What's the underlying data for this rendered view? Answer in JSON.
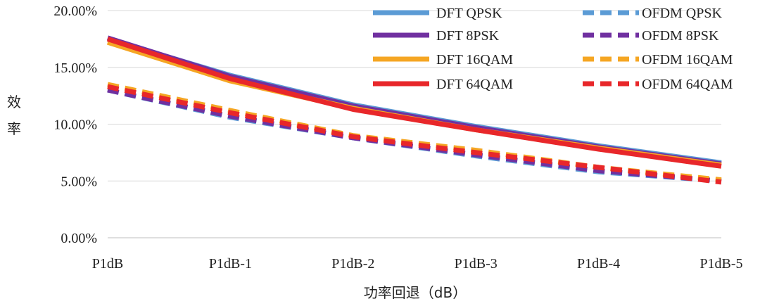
{
  "chart_data": {
    "type": "line",
    "title": "",
    "xlabel": "功率回退（dB）",
    "ylabel": "效率",
    "categories": [
      "P1dB",
      "P1dB-1",
      "P1dB-2",
      "P1dB-3",
      "P1dB-4",
      "P1dB-5"
    ],
    "ylim": [
      0,
      20
    ],
    "y_ticks": [
      0,
      5,
      10,
      15,
      20
    ],
    "y_tick_labels": [
      "0.00%",
      "5.00%",
      "10.00%",
      "15.00%",
      "20.00%"
    ],
    "grid": true,
    "legend_position": "top-right",
    "series": [
      {
        "name": "DFT QPSK",
        "color": "#5B9BD5",
        "style": "solid",
        "values": [
          17.5,
          14.3,
          11.7,
          9.8,
          8.1,
          6.6
        ]
      },
      {
        "name": "OFDM QPSK",
        "color": "#5B9BD5",
        "style": "dashed",
        "values": [
          13.0,
          10.6,
          8.8,
          7.2,
          5.8,
          5.0
        ]
      },
      {
        "name": "DFT 8PSK",
        "color": "#7030A0",
        "style": "solid",
        "values": [
          17.6,
          14.2,
          11.6,
          9.7,
          8.0,
          6.5
        ]
      },
      {
        "name": "OFDM 8PSK",
        "color": "#7030A0",
        "style": "dashed",
        "values": [
          13.0,
          10.7,
          8.8,
          7.3,
          5.9,
          5.0
        ]
      },
      {
        "name": "DFT 16QAM",
        "color": "#F5A623",
        "style": "solid",
        "values": [
          17.2,
          13.8,
          11.4,
          9.5,
          7.9,
          6.4
        ]
      },
      {
        "name": "OFDM 16QAM",
        "color": "#F5A623",
        "style": "dashed",
        "values": [
          13.5,
          11.2,
          9.0,
          7.7,
          6.2,
          5.1
        ]
      },
      {
        "name": "DFT 64QAM",
        "color": "#E8272A",
        "style": "solid",
        "values": [
          17.5,
          14.0,
          11.3,
          9.5,
          7.8,
          6.3
        ]
      },
      {
        "name": "OFDM 64QAM",
        "color": "#E8272A",
        "style": "dashed",
        "values": [
          13.3,
          11.0,
          8.9,
          7.5,
          6.2,
          4.9
        ]
      }
    ],
    "legend_order": [
      "DFT QPSK",
      "OFDM QPSK",
      "DFT 8PSK",
      "OFDM 8PSK",
      "DFT 16QAM",
      "OFDM 16QAM",
      "DFT 64QAM",
      "OFDM 64QAM"
    ]
  }
}
